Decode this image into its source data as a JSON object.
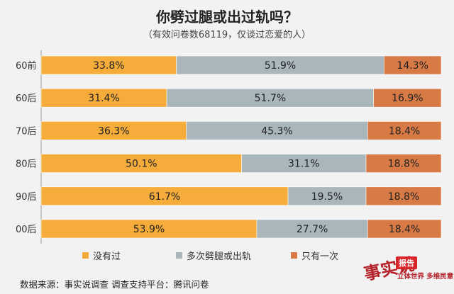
{
  "chart_data": {
    "type": "bar",
    "orientation": "horizontal",
    "stacked": true,
    "percent_stacked": true,
    "title": "你劈过腿或出过轨吗？",
    "subtitle": "（有效问卷数68119，仅谈过恋爱的人）",
    "categories": [
      "60前",
      "60后",
      "70后",
      "80后",
      "90后",
      "00后"
    ],
    "series": [
      {
        "name": "没有过",
        "color": "#f5ac3b",
        "values": [
          33.8,
          31.4,
          36.3,
          50.1,
          61.7,
          53.9
        ]
      },
      {
        "name": "多次劈腿或出轨",
        "color": "#a9b7bd",
        "values": [
          51.9,
          51.7,
          45.3,
          31.1,
          19.5,
          27.7
        ]
      },
      {
        "name": "只有一次",
        "color": "#d77a45",
        "values": [
          14.3,
          16.9,
          18.4,
          18.8,
          18.8,
          18.4
        ]
      }
    ],
    "value_labels": [
      [
        "33.8%",
        "51.9%",
        "14.3%"
      ],
      [
        "31.4%",
        "51.7%",
        "16.9%"
      ],
      [
        "36.3%",
        "45.3%",
        "18.4%"
      ],
      [
        "50.1%",
        "31.1%",
        "18.8%"
      ],
      [
        "61.7%",
        "19.5%",
        "18.8%"
      ],
      [
        "53.9%",
        "27.7%",
        "18.4%"
      ]
    ],
    "xlim": [
      0,
      100
    ],
    "grid": false,
    "legend_position": "bottom"
  },
  "source_text": "数据来源：事实说调查   调查支持平台：腾讯问卷",
  "logo": {
    "brush_text": "事实说",
    "badge": "报告",
    "tagline": "立体世界 多维民意"
  }
}
